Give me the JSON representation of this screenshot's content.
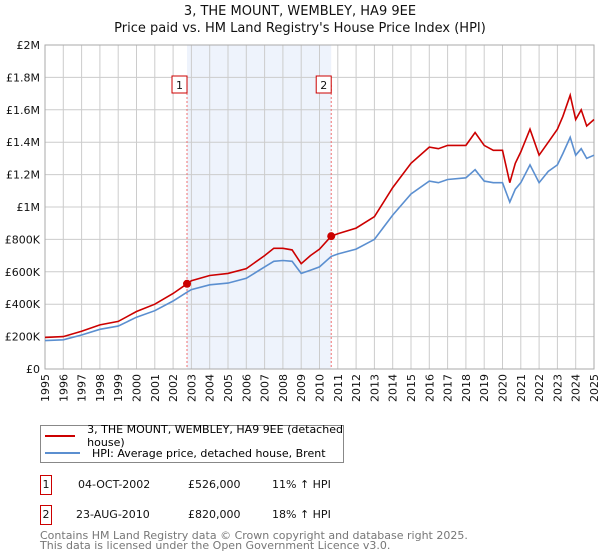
{
  "chart_data": {
    "type": "line",
    "title": "3, THE MOUNT, WEMBLEY, HA9 9EE",
    "subtitle": "Price paid vs. HM Land Registry's House Price Index (HPI)",
    "xlim": [
      1995,
      2025
    ],
    "ylim": [
      0,
      2000000
    ],
    "x_ticks": [
      "1995",
      "1996",
      "1997",
      "1998",
      "1999",
      "2000",
      "2001",
      "2002",
      "2003",
      "2004",
      "2005",
      "2006",
      "2007",
      "2008",
      "2009",
      "2010",
      "2011",
      "2012",
      "2013",
      "2014",
      "2015",
      "2016",
      "2017",
      "2018",
      "2019",
      "2020",
      "2021",
      "2022",
      "2023",
      "2024",
      "2025"
    ],
    "y_ticks": [
      {
        "v": 0,
        "label": "£0"
      },
      {
        "v": 200000,
        "label": "£200K"
      },
      {
        "v": 400000,
        "label": "£400K"
      },
      {
        "v": 600000,
        "label": "£600K"
      },
      {
        "v": 800000,
        "label": "£800K"
      },
      {
        "v": 1000000,
        "label": "£1M"
      },
      {
        "v": 1200000,
        "label": "£1.2M"
      },
      {
        "v": 1400000,
        "label": "£1.4M"
      },
      {
        "v": 1600000,
        "label": "£1.6M"
      },
      {
        "v": 1800000,
        "label": "£1.8M"
      },
      {
        "v": 2000000,
        "label": "£2M"
      }
    ],
    "grid": true,
    "x": [
      1995,
      1996,
      1997,
      1998,
      1999,
      2000,
      2001,
      2002,
      2002.76,
      2003,
      2004,
      2005,
      2006,
      2007,
      2007.5,
      2008,
      2008.5,
      2009,
      2009.5,
      2010,
      2010.64,
      2011,
      2012,
      2013,
      2014,
      2015,
      2016,
      2016.5,
      2017,
      2018,
      2018.5,
      2019,
      2019.5,
      2020,
      2020.4,
      2020.7,
      2021,
      2021.5,
      2022,
      2022.5,
      2023,
      2023.3,
      2023.7,
      2024,
      2024.3,
      2024.6,
      2025
    ],
    "series": [
      {
        "name": "3, THE MOUNT, WEMBLEY, HA9 9EE (detached house)",
        "color": "#cc0000",
        "values": [
          195000,
          200000,
          233000,
          272000,
          294000,
          355000,
          400000,
          466000,
          526000,
          545000,
          577000,
          590000,
          620000,
          700000,
          745000,
          745000,
          735000,
          650000,
          700000,
          740000,
          820000,
          835000,
          870000,
          940000,
          1120000,
          1270000,
          1370000,
          1360000,
          1380000,
          1380000,
          1460000,
          1380000,
          1350000,
          1350000,
          1150000,
          1270000,
          1340000,
          1480000,
          1320000,
          1400000,
          1480000,
          1560000,
          1690000,
          1540000,
          1600000,
          1500000,
          1540000
        ]
      },
      {
        "name": "HPI: Average price, detached house, Brent",
        "color": "#5b8fd0",
        "values": [
          175000,
          180000,
          210000,
          245000,
          265000,
          320000,
          360000,
          420000,
          474000,
          490000,
          520000,
          530000,
          560000,
          630000,
          665000,
          670000,
          665000,
          590000,
          610000,
          630000,
          695000,
          710000,
          740000,
          800000,
          950000,
          1080000,
          1160000,
          1150000,
          1170000,
          1180000,
          1230000,
          1160000,
          1150000,
          1150000,
          1030000,
          1110000,
          1150000,
          1260000,
          1150000,
          1220000,
          1260000,
          1330000,
          1430000,
          1320000,
          1360000,
          1300000,
          1320000
        ]
      }
    ],
    "sales": [
      {
        "id": "1",
        "x": 2002.76,
        "value": 526000
      },
      {
        "id": "2",
        "x": 2010.64,
        "value": 820000
      }
    ],
    "shaded_range": [
      2002.76,
      2010.64
    ]
  },
  "legend": {
    "items": [
      "3, THE MOUNT, WEMBLEY, HA9 9EE (detached house)",
      "HPI: Average price, detached house, Brent"
    ]
  },
  "transactions": [
    {
      "id": "1",
      "date": "04-OCT-2002",
      "price": "£526,000",
      "hpi": "11% ↑ HPI"
    },
    {
      "id": "2",
      "date": "23-AUG-2010",
      "price": "£820,000",
      "hpi": "18% ↑ HPI"
    }
  ],
  "footer": {
    "line1": "Contains HM Land Registry data © Crown copyright and database right 2025.",
    "line2": "This data is licensed under the Open Government Licence v3.0."
  }
}
